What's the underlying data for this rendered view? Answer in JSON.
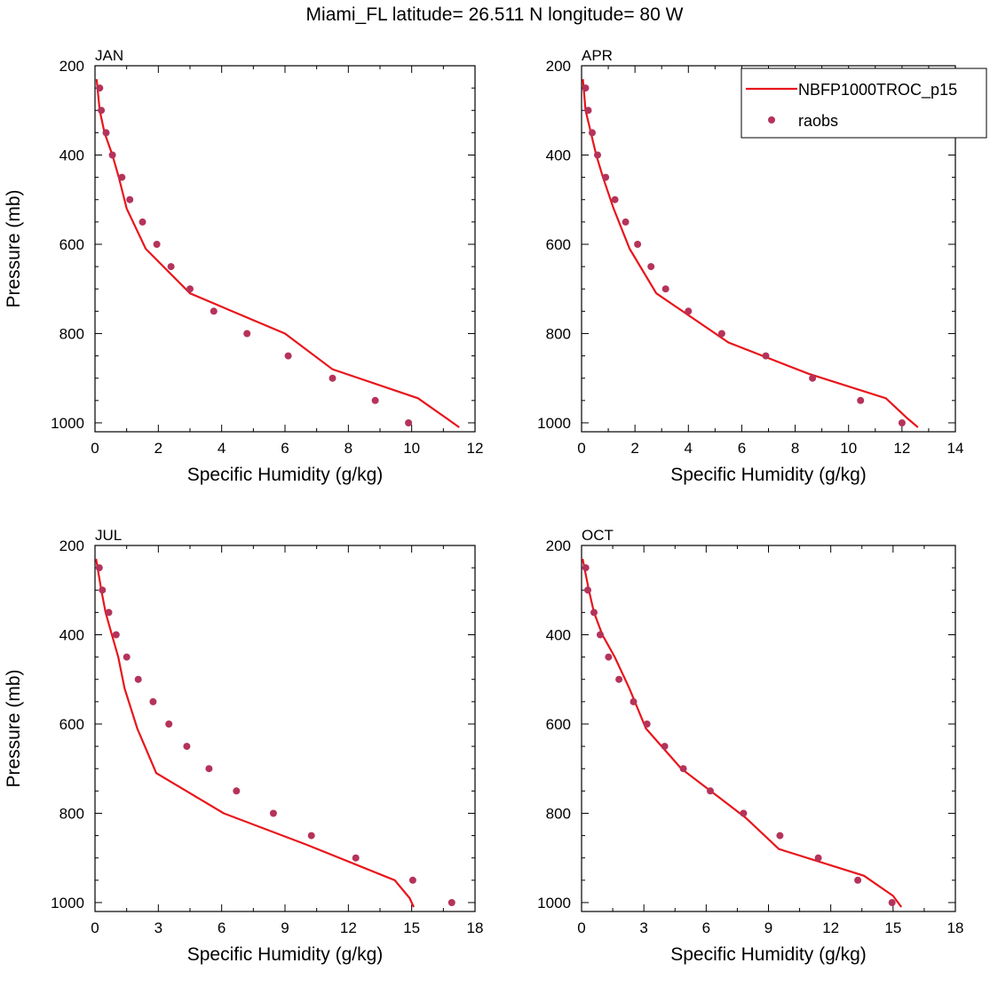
{
  "title": "Miami_FL  latitude= 26.511 N longitude= 80 W",
  "legend": {
    "model": "NBFP1000TROC_p15",
    "obs": "raobs",
    "placement": "top-right"
  },
  "colors": {
    "model": "#e8151b",
    "obs": "#b5335a",
    "axis": "#000000"
  },
  "chart_data": [
    {
      "type": "line",
      "panel": "JAN",
      "xlabel": "Specific Humidity (g/kg)",
      "ylabel": "Pressure (mb)",
      "xlim": [
        0,
        12
      ],
      "ylim": [
        1000,
        200
      ],
      "y_reversed": true,
      "xticks": [
        0,
        2,
        4,
        6,
        8,
        10,
        12
      ],
      "yticks": [
        200,
        400,
        600,
        800,
        1000
      ],
      "series": [
        {
          "name": "NBFP1000TROC_p15",
          "points": [
            [
              0.05,
              230
            ],
            [
              0.15,
              300
            ],
            [
              0.3,
              350
            ],
            [
              0.55,
              400
            ],
            [
              0.75,
              450
            ],
            [
              1.0,
              520
            ],
            [
              1.6,
              610
            ],
            [
              3.0,
              710
            ],
            [
              6.0,
              800
            ],
            [
              7.5,
              880
            ],
            [
              10.2,
              945
            ],
            [
              11.2,
              995
            ],
            [
              11.5,
              1010
            ]
          ]
        },
        {
          "name": "raobs",
          "points": [
            [
              0.15,
              250
            ],
            [
              0.2,
              300
            ],
            [
              0.35,
              350
            ],
            [
              0.55,
              400
            ],
            [
              0.85,
              450
            ],
            [
              1.1,
              500
            ],
            [
              1.5,
              550
            ],
            [
              1.95,
              600
            ],
            [
              2.4,
              650
            ],
            [
              3.0,
              700
            ],
            [
              3.75,
              750
            ],
            [
              4.8,
              800
            ],
            [
              6.1,
              850
            ],
            [
              7.5,
              900
            ],
            [
              8.85,
              950
            ],
            [
              9.9,
              1000
            ]
          ]
        }
      ]
    },
    {
      "type": "line",
      "panel": "APR",
      "xlabel": "Specific Humidity (g/kg)",
      "ylabel": "",
      "xlim": [
        0,
        14
      ],
      "ylim": [
        1000,
        200
      ],
      "y_reversed": true,
      "xticks": [
        0,
        2,
        4,
        6,
        8,
        10,
        12,
        14
      ],
      "yticks": [
        200,
        400,
        600,
        800,
        1000
      ],
      "series": [
        {
          "name": "NBFP1000TROC_p15",
          "points": [
            [
              0.05,
              230
            ],
            [
              0.15,
              300
            ],
            [
              0.35,
              350
            ],
            [
              0.55,
              400
            ],
            [
              0.8,
              450
            ],
            [
              1.2,
              520
            ],
            [
              1.8,
              610
            ],
            [
              2.8,
              710
            ],
            [
              5.5,
              820
            ],
            [
              8.5,
              890
            ],
            [
              11.4,
              945
            ],
            [
              12.2,
              990
            ],
            [
              12.6,
              1010
            ]
          ]
        },
        {
          "name": "raobs",
          "points": [
            [
              0.15,
              250
            ],
            [
              0.25,
              300
            ],
            [
              0.4,
              350
            ],
            [
              0.6,
              400
            ],
            [
              0.9,
              450
            ],
            [
              1.25,
              500
            ],
            [
              1.65,
              550
            ],
            [
              2.1,
              600
            ],
            [
              2.6,
              650
            ],
            [
              3.15,
              700
            ],
            [
              4.0,
              750
            ],
            [
              5.25,
              800
            ],
            [
              6.9,
              850
            ],
            [
              8.65,
              900
            ],
            [
              10.45,
              950
            ],
            [
              12.0,
              1000
            ]
          ]
        }
      ]
    },
    {
      "type": "line",
      "panel": "JUL",
      "xlabel": "Specific Humidity (g/kg)",
      "ylabel": "Pressure (mb)",
      "xlim": [
        0,
        18
      ],
      "ylim": [
        1000,
        200
      ],
      "y_reversed": true,
      "xticks": [
        0,
        3,
        6,
        9,
        12,
        15,
        18
      ],
      "yticks": [
        200,
        400,
        600,
        800,
        1000
      ],
      "series": [
        {
          "name": "NBFP1000TROC_p15",
          "points": [
            [
              0.05,
              230
            ],
            [
              0.3,
              300
            ],
            [
              0.5,
              350
            ],
            [
              0.8,
              400
            ],
            [
              1.1,
              450
            ],
            [
              1.4,
              520
            ],
            [
              2.0,
              610
            ],
            [
              2.9,
              710
            ],
            [
              6.1,
              800
            ],
            [
              10.0,
              870
            ],
            [
              14.2,
              950
            ],
            [
              14.9,
              990
            ],
            [
              15.1,
              1010
            ]
          ]
        },
        {
          "name": "raobs",
          "points": [
            [
              0.2,
              250
            ],
            [
              0.35,
              300
            ],
            [
              0.65,
              350
            ],
            [
              1.0,
              400
            ],
            [
              1.5,
              450
            ],
            [
              2.05,
              500
            ],
            [
              2.75,
              550
            ],
            [
              3.5,
              600
            ],
            [
              4.35,
              650
            ],
            [
              5.4,
              700
            ],
            [
              6.7,
              750
            ],
            [
              8.45,
              800
            ],
            [
              10.25,
              850
            ],
            [
              12.35,
              900
            ],
            [
              15.05,
              950
            ],
            [
              16.9,
              1000
            ]
          ]
        }
      ]
    },
    {
      "type": "line",
      "panel": "OCT",
      "xlabel": "Specific Humidity (g/kg)",
      "ylabel": "",
      "xlim": [
        0,
        18
      ],
      "ylim": [
        1000,
        200
      ],
      "y_reversed": true,
      "xticks": [
        0,
        3,
        6,
        9,
        12,
        15,
        18
      ],
      "yticks": [
        200,
        400,
        600,
        800,
        1000
      ],
      "series": [
        {
          "name": "NBFP1000TROC_p15",
          "points": [
            [
              0.05,
              230
            ],
            [
              0.35,
              300
            ],
            [
              0.6,
              350
            ],
            [
              1.0,
              400
            ],
            [
              1.6,
              450
            ],
            [
              2.3,
              520
            ],
            [
              3.1,
              610
            ],
            [
              4.8,
              700
            ],
            [
              6.5,
              760
            ],
            [
              7.9,
              810
            ],
            [
              9.5,
              880
            ],
            [
              13.6,
              940
            ],
            [
              15.0,
              985
            ],
            [
              15.4,
              1010
            ]
          ]
        },
        {
          "name": "raobs",
          "points": [
            [
              0.2,
              250
            ],
            [
              0.3,
              300
            ],
            [
              0.6,
              350
            ],
            [
              0.9,
              400
            ],
            [
              1.3,
              450
            ],
            [
              1.8,
              500
            ],
            [
              2.5,
              550
            ],
            [
              3.15,
              600
            ],
            [
              4.0,
              650
            ],
            [
              4.9,
              700
            ],
            [
              6.2,
              750
            ],
            [
              7.8,
              800
            ],
            [
              9.55,
              850
            ],
            [
              11.4,
              900
            ],
            [
              13.3,
              950
            ],
            [
              14.95,
              1000
            ]
          ]
        }
      ]
    }
  ]
}
